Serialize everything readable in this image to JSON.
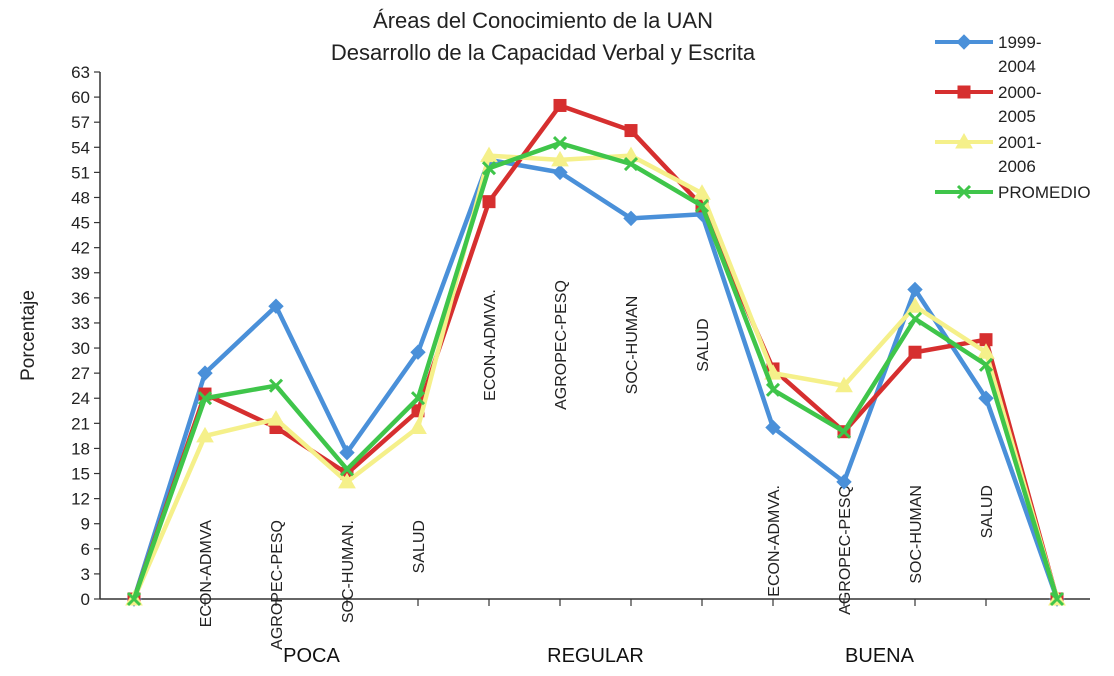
{
  "chart_data": {
    "type": "line",
    "title_lines": [
      "Áreas  del  Conocimiento de la UAN",
      "Desarrollo de la Capacidad Verbal y Escrita"
    ],
    "xlabel": "",
    "ylabel": "Porcentaje",
    "ylim": [
      0,
      63
    ],
    "yticks": [
      0,
      3,
      6,
      9,
      12,
      15,
      18,
      21,
      24,
      27,
      30,
      33,
      36,
      39,
      42,
      45,
      48,
      51,
      54,
      57,
      60,
      63
    ],
    "categories": [
      "",
      "ECON-ADMVA",
      "AGROPEC-PESQ",
      "SOC-HUMAN.",
      "SALUD",
      "ECON-ADMVA.",
      "AGROPEC-PESQ",
      "SOC-HUMAN",
      "SALUD",
      "ECON-ADMVA.",
      "AGROPEC-PESQ",
      "SOC-HUMAN",
      "SALUD",
      ""
    ],
    "groups": [
      "POCA",
      "REGULAR",
      "BUENA"
    ],
    "legend_position": "top-right",
    "series": [
      {
        "name": "1999-2004",
        "legend_lines": [
          "1999-",
          "2004"
        ],
        "color": "#4a90d9",
        "marker": "diamond",
        "values": [
          0,
          27,
          35,
          17.5,
          29.5,
          52.5,
          51,
          45.5,
          46,
          20.5,
          14,
          37,
          24,
          0
        ]
      },
      {
        "name": "2000-2005",
        "legend_lines": [
          "2000-",
          "2005"
        ],
        "color": "#d62f2f",
        "marker": "square",
        "values": [
          0,
          24.5,
          20.5,
          15,
          22.5,
          47.5,
          59,
          56,
          47,
          27.5,
          20,
          29.5,
          31,
          0
        ]
      },
      {
        "name": "2001-2006",
        "legend_lines": [
          "2001-",
          "2006"
        ],
        "color": "#f5f08a",
        "marker": "triangle",
        "values": [
          0,
          19.5,
          21.5,
          14,
          20.5,
          53,
          52.5,
          53,
          48.5,
          27,
          25.5,
          35,
          29.5,
          0
        ]
      },
      {
        "name": "PROMEDIO",
        "legend_lines": [
          "PROMEDIO"
        ],
        "color": "#3fc54a",
        "marker": "x",
        "values": [
          0,
          24,
          25.5,
          15.5,
          24,
          51.5,
          54.5,
          52,
          47,
          25,
          20,
          33.5,
          28,
          0
        ]
      }
    ]
  }
}
